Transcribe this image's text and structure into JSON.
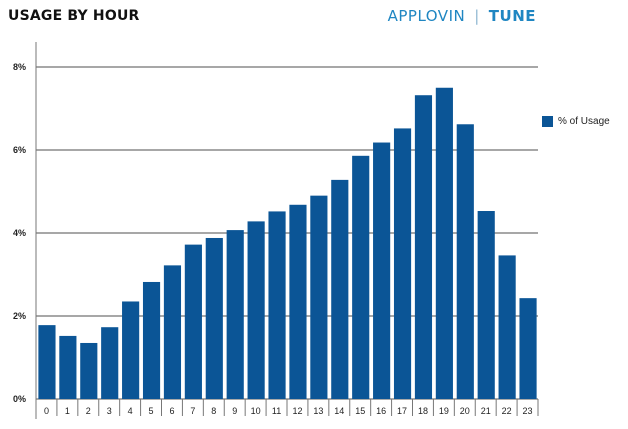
{
  "title": "USAGE BY HOUR",
  "brand": {
    "left": "APPLOVIN",
    "separator": "|",
    "right": "TUNE",
    "color": "#1f86c2"
  },
  "bar_color": "#0b5596",
  "chart_data": {
    "type": "bar",
    "categories": [
      "0",
      "1",
      "2",
      "3",
      "4",
      "5",
      "6",
      "7",
      "8",
      "9",
      "10",
      "11",
      "12",
      "13",
      "14",
      "15",
      "16",
      "17",
      "18",
      "19",
      "20",
      "21",
      "22",
      "23"
    ],
    "series": [
      {
        "name": "% of Usage",
        "values": [
          1.78,
          1.52,
          1.35,
          1.73,
          2.35,
          2.82,
          3.22,
          3.72,
          3.88,
          4.07,
          4.28,
          4.52,
          4.68,
          4.9,
          5.28,
          5.86,
          6.18,
          6.52,
          7.32,
          7.5,
          6.62,
          4.53,
          3.46,
          2.43
        ]
      }
    ],
    "yticks": [
      "0%",
      "2%",
      "4%",
      "6%",
      "8%"
    ],
    "ylim": [
      0,
      8
    ],
    "grid": true,
    "legend": "right"
  }
}
